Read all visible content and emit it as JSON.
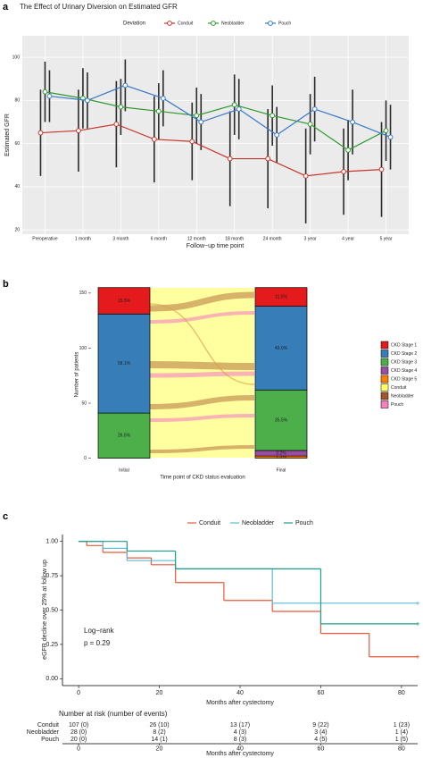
{
  "chart_data": [
    {
      "type": "line",
      "panel_label": "a",
      "title": "The Effect of Urinary Diversion on Estimated GFR",
      "xlabel": "Follow−up time point",
      "ylabel": "Estimated GFR",
      "legend_title": "Deviation",
      "legend_position": "top",
      "grid": true,
      "categories": [
        "Preoperative",
        "1 month",
        "3 month",
        "6 month",
        "12 month",
        "18 month",
        "24 month",
        "3 year",
        "4 year",
        "5 year"
      ],
      "series": [
        {
          "name": "Conduit",
          "color": "#c8372d",
          "values": [
            65,
            66,
            69,
            62,
            61,
            53,
            53,
            45,
            47,
            48
          ],
          "errors": [
            20,
            19,
            20,
            20,
            18,
            22,
            23,
            22,
            20,
            22
          ]
        },
        {
          "name": "Neobladder",
          "color": "#2e9a2e",
          "values": [
            84,
            81,
            77,
            75,
            73,
            78,
            73,
            69,
            57,
            66
          ],
          "errors": [
            14,
            14,
            13,
            13,
            13,
            14,
            14,
            14,
            14,
            14
          ]
        },
        {
          "name": "Pouch",
          "color": "#3a78c9",
          "values": [
            82,
            80,
            87,
            81,
            70,
            76,
            64,
            76,
            70,
            63
          ],
          "errors": [
            12,
            13,
            12,
            13,
            13,
            14,
            13,
            15,
            15,
            15
          ]
        }
      ],
      "ylim": [
        18,
        110
      ],
      "yticks": [
        20,
        40,
        60,
        80,
        100
      ]
    },
    {
      "type": "alluvial",
      "panel_label": "b",
      "xlabel": "Time point of CKD status evaluation",
      "ylabel": "Number of patients",
      "legend_position": "right",
      "categories": [
        "Initial",
        "Final"
      ],
      "series": [
        {
          "name": "CKD Stage 1",
          "color": "#e41a1c",
          "values": [
            24,
            17
          ],
          "value_labels": [
            "15.5%",
            "11.0%"
          ]
        },
        {
          "name": "CKD Stage 2",
          "color": "#377eb8",
          "values": [
            90,
            76
          ],
          "value_labels": [
            "58.1%",
            "49.0%"
          ]
        },
        {
          "name": "CKD Stage 3",
          "color": "#4daf4a",
          "values": [
            41,
            55
          ],
          "value_labels": [
            "26.5%",
            "35.5%"
          ]
        },
        {
          "name": "CKD Stage 4",
          "color": "#984ea3",
          "values": [
            0,
            5
          ],
          "value_labels": [
            null,
            "3.2%"
          ]
        },
        {
          "name": "CKD Stage 5",
          "color": "#ff7f00",
          "values": [
            0,
            2
          ],
          "value_labels": [
            null,
            "1.3%"
          ]
        }
      ],
      "flow_legend": [
        {
          "name": "Conduit",
          "color": "#ffff66"
        },
        {
          "name": "Neobladder",
          "color": "#a65628"
        },
        {
          "name": "Pouch",
          "color": "#f781bf"
        }
      ],
      "ylim": [
        -6,
        158
      ],
      "yticks": [
        0,
        50,
        100,
        150
      ]
    },
    {
      "type": "survival",
      "panel_label": "c",
      "xlabel": "Months after cystectomy",
      "ylabel": "eGFR decline over 25% at follow up",
      "legend_position": "top",
      "annotations": [
        "Log−rank",
        "p = 0.29"
      ],
      "series": [
        {
          "name": "Conduit",
          "color": "#e8593a",
          "x": [
            0,
            2,
            6,
            12,
            18,
            24,
            36,
            48,
            60,
            72,
            84
          ],
          "values": [
            1,
            0.97,
            0.92,
            0.88,
            0.83,
            0.7,
            0.57,
            0.49,
            0.33,
            0.16,
            0.16
          ]
        },
        {
          "name": "Neobladder",
          "color": "#5bbcd6",
          "x": [
            0,
            6,
            12,
            24,
            48,
            84
          ],
          "values": [
            1,
            0.95,
            0.86,
            0.8,
            0.55,
            0.55
          ]
        },
        {
          "name": "Pouch",
          "color": "#1b9e8a",
          "x": [
            0,
            12,
            24,
            60,
            84
          ],
          "values": [
            1,
            0.93,
            0.8,
            0.4,
            0.4
          ]
        }
      ],
      "xlim": [
        -4,
        84
      ],
      "xticks": [
        0,
        20,
        40,
        60,
        80
      ],
      "ylim": [
        -0.05,
        1.05
      ],
      "yticks": [
        {
          "value": 0,
          "label": "0.00"
        },
        {
          "value": 0.25,
          "label": "0.25"
        },
        {
          "value": 0.5,
          "label": "0.50"
        },
        {
          "value": 0.75,
          "label": "0.75"
        },
        {
          "value": 1,
          "label": "1.00"
        }
      ],
      "risk_table": {
        "title": "Number at risk (number of events)",
        "rows": [
          {
            "cells": [
              "107 (0)",
              "26 (10)",
              "13 (17)",
              "9 (22)",
              "1 (23)"
            ]
          },
          {
            "cells": [
              "28 (0)",
              "8 (2)",
              "4 (3)",
              "3 (4)",
              "1 (4)"
            ]
          },
          {
            "cells": [
              "20 (0)",
              "14 (1)",
              "8 (3)",
              "4 (5)",
              "1 (5)"
            ]
          }
        ]
      }
    }
  ]
}
